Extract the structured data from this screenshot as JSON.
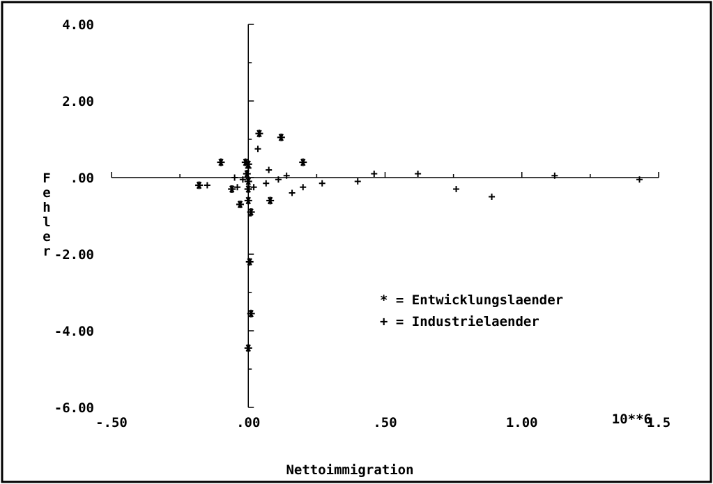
{
  "chart_data": {
    "type": "scatter",
    "title": "",
    "xlabel": "Nettoimmigration",
    "ylabel": "Fehler",
    "x_multiplier": "10**6",
    "xlim": [
      -0.5,
      1.5
    ],
    "ylim": [
      -6.0,
      4.0
    ],
    "x_ticks": [
      -0.5,
      0.0,
      0.5,
      1.0,
      1.5
    ],
    "x_tick_labels": [
      "-.50",
      ".00",
      ".50",
      "1.00",
      "1.5"
    ],
    "y_ticks": [
      4.0,
      2.0,
      0.0,
      -2.0,
      -4.0,
      -6.0
    ],
    "y_tick_labels": [
      "4.00",
      "2.00",
      ".00",
      "-2.00",
      "-4.00",
      "-6.00"
    ],
    "grid": false,
    "legend_position": "center-right",
    "series": [
      {
        "name": "Entwicklungslaender",
        "symbol": "*",
        "legend_label": "* = Entwicklungslaender",
        "points": [
          [
            -0.18,
            -0.2
          ],
          [
            -0.1,
            0.4
          ],
          [
            -0.06,
            -0.3
          ],
          [
            -0.03,
            -0.7
          ],
          [
            -0.01,
            0.4
          ],
          [
            0.0,
            0.35
          ],
          [
            -0.005,
            0.1
          ],
          [
            0.0,
            -0.1
          ],
          [
            0.0,
            -0.3
          ],
          [
            0.0,
            -0.6
          ],
          [
            0.01,
            -0.9
          ],
          [
            0.04,
            1.15
          ],
          [
            0.08,
            -0.6
          ],
          [
            0.12,
            1.05
          ],
          [
            0.2,
            0.4
          ],
          [
            0.005,
            -2.2
          ],
          [
            0.01,
            -3.55
          ],
          [
            0.0,
            -4.45
          ]
        ]
      },
      {
        "name": "Industrielaender",
        "symbol": "+",
        "legend_label": "+ = Industrielaender",
        "points": [
          [
            -0.15,
            -0.2
          ],
          [
            -0.05,
            0.0
          ],
          [
            -0.04,
            -0.25
          ],
          [
            -0.02,
            -0.05
          ],
          [
            0.0,
            0.25
          ],
          [
            0.02,
            -0.25
          ],
          [
            0.035,
            0.75
          ],
          [
            0.065,
            -0.15
          ],
          [
            0.075,
            0.2
          ],
          [
            0.11,
            -0.05
          ],
          [
            0.14,
            0.05
          ],
          [
            0.16,
            -0.4
          ],
          [
            0.2,
            -0.25
          ],
          [
            0.27,
            -0.15
          ],
          [
            0.4,
            -0.1
          ],
          [
            0.46,
            0.1
          ],
          [
            0.62,
            0.1
          ],
          [
            0.76,
            -0.3
          ],
          [
            0.89,
            -0.5
          ],
          [
            1.12,
            0.05
          ],
          [
            1.43,
            -0.05
          ]
        ]
      }
    ]
  }
}
